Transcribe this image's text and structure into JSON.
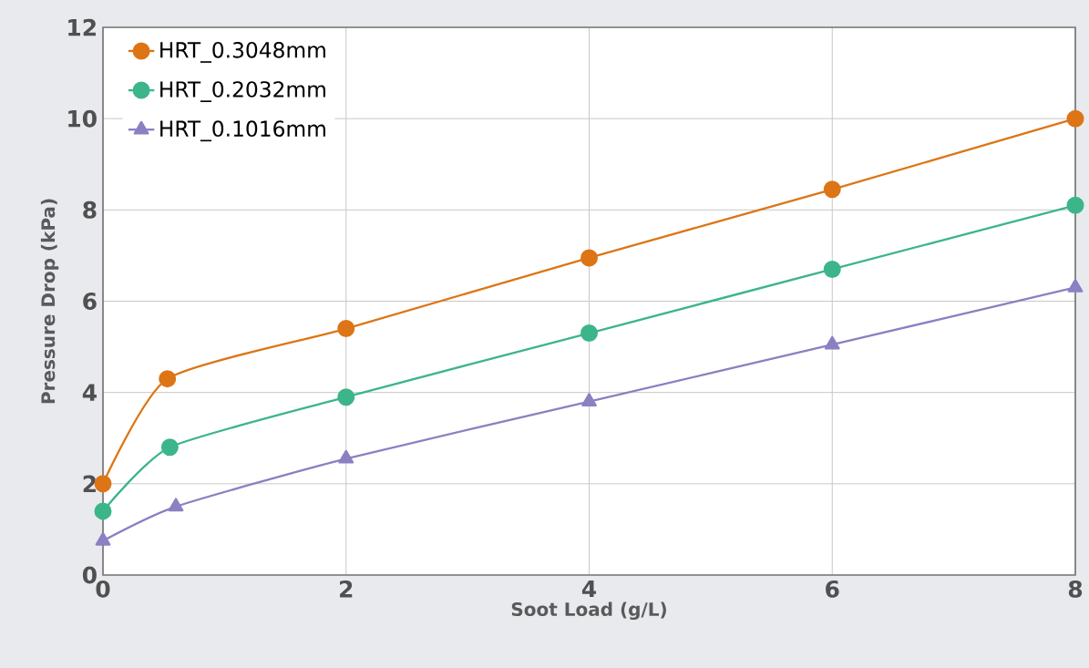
{
  "chart_data": {
    "type": "line",
    "xlabel": "Soot Load (g/L)",
    "ylabel": "Pressure Drop (kPa)",
    "xlim": [
      0,
      8
    ],
    "ylim": [
      0,
      12
    ],
    "xticks": [
      0,
      2,
      4,
      6,
      8
    ],
    "yticks": [
      0,
      2,
      4,
      6,
      8,
      10,
      12
    ],
    "grid": true,
    "legend": "top left",
    "line_style": "solid",
    "series": [
      {
        "name": "HRT_0.3048mm",
        "color": "#dd7516",
        "marker": "circle",
        "x": [
          0,
          0.53,
          2,
          4,
          6,
          8
        ],
        "values": [
          2.0,
          4.3,
          5.4,
          6.95,
          8.45,
          10.0
        ]
      },
      {
        "name": "HRT_0.2032mm",
        "color": "#3db58a",
        "marker": "circle",
        "x": [
          0,
          0.55,
          2,
          4,
          6,
          8
        ],
        "values": [
          1.4,
          2.8,
          3.9,
          5.3,
          6.7,
          8.1
        ]
      },
      {
        "name": "HRT_0.1016mm",
        "color": "#8a80c2",
        "marker": "triangle",
        "x": [
          0,
          0.6,
          2,
          4,
          6,
          8
        ],
        "values": [
          0.75,
          1.5,
          2.55,
          3.8,
          5.05,
          6.3
        ]
      }
    ]
  }
}
